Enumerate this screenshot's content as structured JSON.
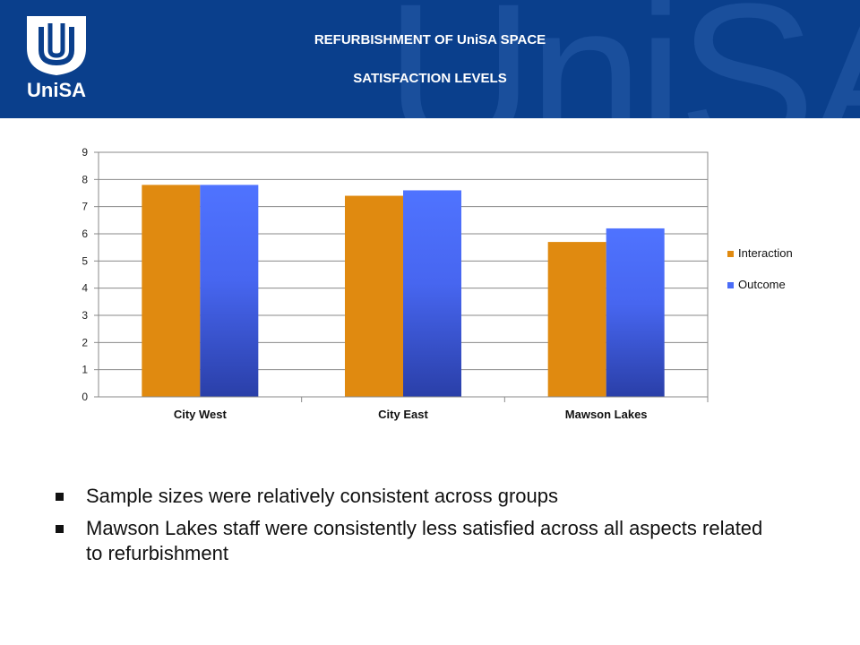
{
  "header": {
    "logo_text": "UniSA",
    "watermark_text": "UniSA",
    "title_line1": "REFURBISHMENT OF UniSA SPACE",
    "title_line2": "SATISFACTION LEVELS",
    "background_color": "#0a3f8c"
  },
  "chart_data": {
    "type": "bar",
    "categories": [
      "City West",
      "City East",
      "Mawson Lakes"
    ],
    "series": [
      {
        "name": "Interaction",
        "values": [
          7.8,
          7.4,
          5.7
        ],
        "color": "#e08a10"
      },
      {
        "name": "Outcome",
        "values": [
          7.8,
          7.6,
          6.2
        ],
        "color": "#4a6cf7"
      }
    ],
    "ylim": [
      0,
      9
    ],
    "yticks": [
      0,
      1,
      2,
      3,
      4,
      5,
      6,
      7,
      8,
      9
    ],
    "grid": true,
    "legend": "right"
  },
  "bullets": [
    "Sample sizes were relatively consistent across groups",
    "Mawson Lakes staff were consistently less satisfied across all aspects related to refurbishment"
  ]
}
